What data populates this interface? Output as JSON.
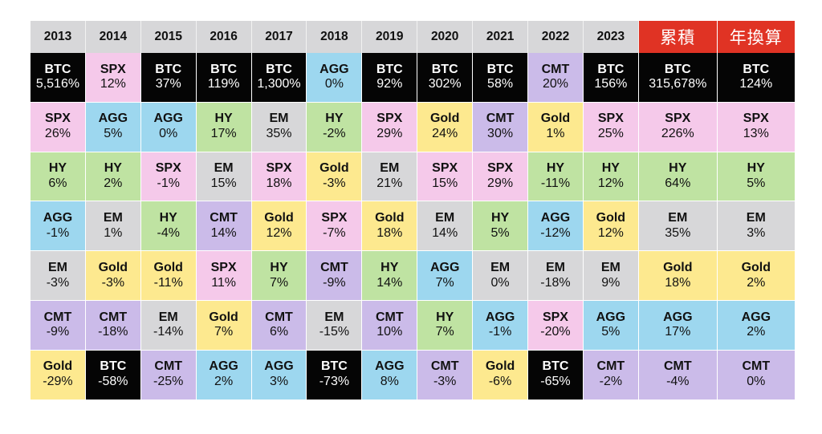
{
  "header": {
    "years": [
      "2013",
      "2014",
      "2015",
      "2016",
      "2017",
      "2018",
      "2019",
      "2020",
      "2021",
      "2022",
      "2023"
    ],
    "cumulative": "累積",
    "annualized": "年換算"
  },
  "colors": {
    "BTC": "#050505",
    "SPX": "#f5c9ea",
    "AGG": "#9dd7ef",
    "HY": "#bfe3a2",
    "EM": "#d7d7d9",
    "Gold": "#fde98f",
    "CMT": "#cbbbe9",
    "header_bg": "#d7d7d9",
    "header_accent": "#e03324"
  },
  "chart_data": {
    "type": "table",
    "columns": [
      "2013",
      "2014",
      "2015",
      "2016",
      "2017",
      "2018",
      "2019",
      "2020",
      "2021",
      "2022",
      "2023",
      "累積",
      "年換算"
    ],
    "rows": [
      [
        {
          "t": "BTC",
          "v": "5,516%"
        },
        {
          "t": "SPX",
          "v": "12%"
        },
        {
          "t": "BTC",
          "v": "37%"
        },
        {
          "t": "BTC",
          "v": "119%"
        },
        {
          "t": "BTC",
          "v": "1,300%"
        },
        {
          "t": "AGG",
          "v": "0%"
        },
        {
          "t": "BTC",
          "v": "92%"
        },
        {
          "t": "BTC",
          "v": "302%"
        },
        {
          "t": "BTC",
          "v": "58%"
        },
        {
          "t": "CMT",
          "v": "20%"
        },
        {
          "t": "BTC",
          "v": "156%"
        },
        {
          "t": "BTC",
          "v": "315,678%"
        },
        {
          "t": "BTC",
          "v": "124%"
        }
      ],
      [
        {
          "t": "SPX",
          "v": "26%"
        },
        {
          "t": "AGG",
          "v": "5%"
        },
        {
          "t": "AGG",
          "v": "0%"
        },
        {
          "t": "HY",
          "v": "17%"
        },
        {
          "t": "EM",
          "v": "35%"
        },
        {
          "t": "HY",
          "v": "-2%"
        },
        {
          "t": "SPX",
          "v": "29%"
        },
        {
          "t": "Gold",
          "v": "24%"
        },
        {
          "t": "CMT",
          "v": "30%"
        },
        {
          "t": "Gold",
          "v": "1%"
        },
        {
          "t": "SPX",
          "v": "25%"
        },
        {
          "t": "SPX",
          "v": "226%"
        },
        {
          "t": "SPX",
          "v": "13%"
        }
      ],
      [
        {
          "t": "HY",
          "v": "6%"
        },
        {
          "t": "HY",
          "v": "2%"
        },
        {
          "t": "SPX",
          "v": "-1%"
        },
        {
          "t": "EM",
          "v": "15%"
        },
        {
          "t": "SPX",
          "v": "18%"
        },
        {
          "t": "Gold",
          "v": "-3%"
        },
        {
          "t": "EM",
          "v": "21%"
        },
        {
          "t": "SPX",
          "v": "15%"
        },
        {
          "t": "SPX",
          "v": "29%"
        },
        {
          "t": "HY",
          "v": "-11%"
        },
        {
          "t": "HY",
          "v": "12%"
        },
        {
          "t": "HY",
          "v": "64%"
        },
        {
          "t": "HY",
          "v": "5%"
        }
      ],
      [
        {
          "t": "AGG",
          "v": "-1%"
        },
        {
          "t": "EM",
          "v": "1%"
        },
        {
          "t": "HY",
          "v": "-4%"
        },
        {
          "t": "CMT",
          "v": "14%"
        },
        {
          "t": "Gold",
          "v": "12%"
        },
        {
          "t": "SPX",
          "v": "-7%"
        },
        {
          "t": "Gold",
          "v": "18%"
        },
        {
          "t": "EM",
          "v": "14%"
        },
        {
          "t": "HY",
          "v": "5%"
        },
        {
          "t": "AGG",
          "v": "-12%"
        },
        {
          "t": "Gold",
          "v": "12%"
        },
        {
          "t": "EM",
          "v": "35%"
        },
        {
          "t": "EM",
          "v": "3%"
        }
      ],
      [
        {
          "t": "EM",
          "v": "-3%"
        },
        {
          "t": "Gold",
          "v": "-3%"
        },
        {
          "t": "Gold",
          "v": "-11%"
        },
        {
          "t": "SPX",
          "v": "11%"
        },
        {
          "t": "HY",
          "v": "7%"
        },
        {
          "t": "CMT",
          "v": "-9%"
        },
        {
          "t": "HY",
          "v": "14%"
        },
        {
          "t": "AGG",
          "v": "7%"
        },
        {
          "t": "EM",
          "v": "0%"
        },
        {
          "t": "EM",
          "v": "-18%"
        },
        {
          "t": "EM",
          "v": "9%"
        },
        {
          "t": "Gold",
          "v": "18%"
        },
        {
          "t": "Gold",
          "v": "2%"
        }
      ],
      [
        {
          "t": "CMT",
          "v": "-9%"
        },
        {
          "t": "CMT",
          "v": "-18%"
        },
        {
          "t": "EM",
          "v": "-14%"
        },
        {
          "t": "Gold",
          "v": "7%"
        },
        {
          "t": "CMT",
          "v": "6%"
        },
        {
          "t": "EM",
          "v": "-15%"
        },
        {
          "t": "CMT",
          "v": "10%"
        },
        {
          "t": "HY",
          "v": "7%"
        },
        {
          "t": "AGG",
          "v": "-1%"
        },
        {
          "t": "SPX",
          "v": "-20%"
        },
        {
          "t": "AGG",
          "v": "5%"
        },
        {
          "t": "AGG",
          "v": "17%"
        },
        {
          "t": "AGG",
          "v": "2%"
        }
      ],
      [
        {
          "t": "Gold",
          "v": "-29%"
        },
        {
          "t": "BTC",
          "v": "-58%"
        },
        {
          "t": "CMT",
          "v": "-25%"
        },
        {
          "t": "AGG",
          "v": "2%"
        },
        {
          "t": "AGG",
          "v": "3%"
        },
        {
          "t": "BTC",
          "v": "-73%"
        },
        {
          "t": "AGG",
          "v": "8%"
        },
        {
          "t": "CMT",
          "v": "-3%"
        },
        {
          "t": "Gold",
          "v": "-6%"
        },
        {
          "t": "BTC",
          "v": "-65%"
        },
        {
          "t": "CMT",
          "v": "-2%"
        },
        {
          "t": "CMT",
          "v": "-4%"
        },
        {
          "t": "CMT",
          "v": "0%"
        }
      ]
    ]
  }
}
